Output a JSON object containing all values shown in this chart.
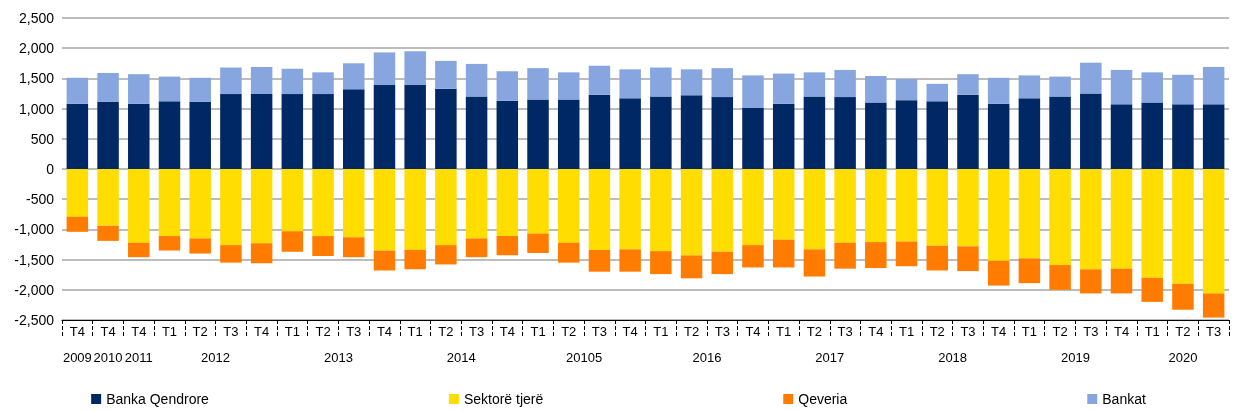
{
  "chart_data": {
    "type": "bar",
    "stacked": true,
    "categories": [
      "T4",
      "T4",
      "T4",
      "T1",
      "T2",
      "T3",
      "T4",
      "T1",
      "T2",
      "T3",
      "T4",
      "T1",
      "T2",
      "T3",
      "T4",
      "T1",
      "T2",
      "T3",
      "T4",
      "T1",
      "T2",
      "T3",
      "T4",
      "T1",
      "T2",
      "T3",
      "T4",
      "T1",
      "T2",
      "T3",
      "T4",
      "T1",
      "T2",
      "T3",
      "T4",
      "T1",
      "T2",
      "T3"
    ],
    "series": [
      {
        "name": "Banka Qendrore",
        "color": "#002864",
        "values": [
          1080,
          1110,
          1080,
          1120,
          1110,
          1240,
          1240,
          1240,
          1240,
          1320,
          1390,
          1390,
          1330,
          1200,
          1130,
          1150,
          1150,
          1230,
          1170,
          1200,
          1220,
          1190,
          1010,
          1080,
          1200,
          1190,
          1100,
          1140,
          1120,
          1230,
          1080,
          1170,
          1200,
          1250,
          1070,
          1100,
          1070,
          1070
        ]
      },
      {
        "name": "Sektorë tjerë",
        "color": "#ffdd00",
        "values": [
          -790,
          -940,
          -1220,
          -1110,
          -1150,
          -1260,
          -1230,
          -1030,
          -1110,
          -1130,
          -1350,
          -1340,
          -1260,
          -1150,
          -1110,
          -1070,
          -1220,
          -1340,
          -1330,
          -1360,
          -1430,
          -1370,
          -1260,
          -1170,
          -1330,
          -1220,
          -1210,
          -1200,
          -1270,
          -1280,
          -1520,
          -1480,
          -1590,
          -1660,
          -1650,
          -1800,
          -1900,
          -2060
        ]
      },
      {
        "name": "Qeveria",
        "color": "#ff7c00",
        "values": [
          -250,
          -250,
          -240,
          -240,
          -250,
          -290,
          -330,
          -340,
          -330,
          -330,
          -330,
          -320,
          -320,
          -310,
          -320,
          -320,
          -330,
          -360,
          -370,
          -380,
          -380,
          -370,
          -370,
          -460,
          -450,
          -430,
          -430,
          -410,
          -410,
          -410,
          -410,
          -410,
          -410,
          -400,
          -410,
          -400,
          -430,
          -400
        ]
      },
      {
        "name": "Bankat",
        "color": "#87a6e0",
        "values": [
          430,
          480,
          490,
          410,
          400,
          440,
          450,
          420,
          360,
          430,
          540,
          560,
          460,
          540,
          490,
          520,
          450,
          480,
          480,
          480,
          430,
          480,
          540,
          500,
          400,
          450,
          440,
          350,
          290,
          340,
          430,
          380,
          330,
          510,
          570,
          500,
          490,
          620
        ]
      }
    ],
    "ylim": [
      -2500,
      2500
    ],
    "yticks": [
      {
        "value": -2500,
        "label": "-2,500"
      },
      {
        "value": -2000,
        "label": "-2,000"
      },
      {
        "value": -1500,
        "label": "-1,500"
      },
      {
        "value": -1000,
        "label": "-1,000"
      },
      -500,
      0,
      500,
      {
        "value": 1000,
        "label": "1,000"
      },
      {
        "value": 1500,
        "label": "1,500"
      },
      {
        "value": 2000,
        "label": "2,000"
      },
      {
        "value": 2500,
        "label": "2,500"
      }
    ],
    "grid": "y",
    "legend": "bottom",
    "annotations": [
      "2009",
      "2010",
      "2011",
      "2012",
      "2013",
      "2014",
      "20105",
      "2016",
      "2017",
      "2018",
      "2019",
      "2020"
    ]
  }
}
